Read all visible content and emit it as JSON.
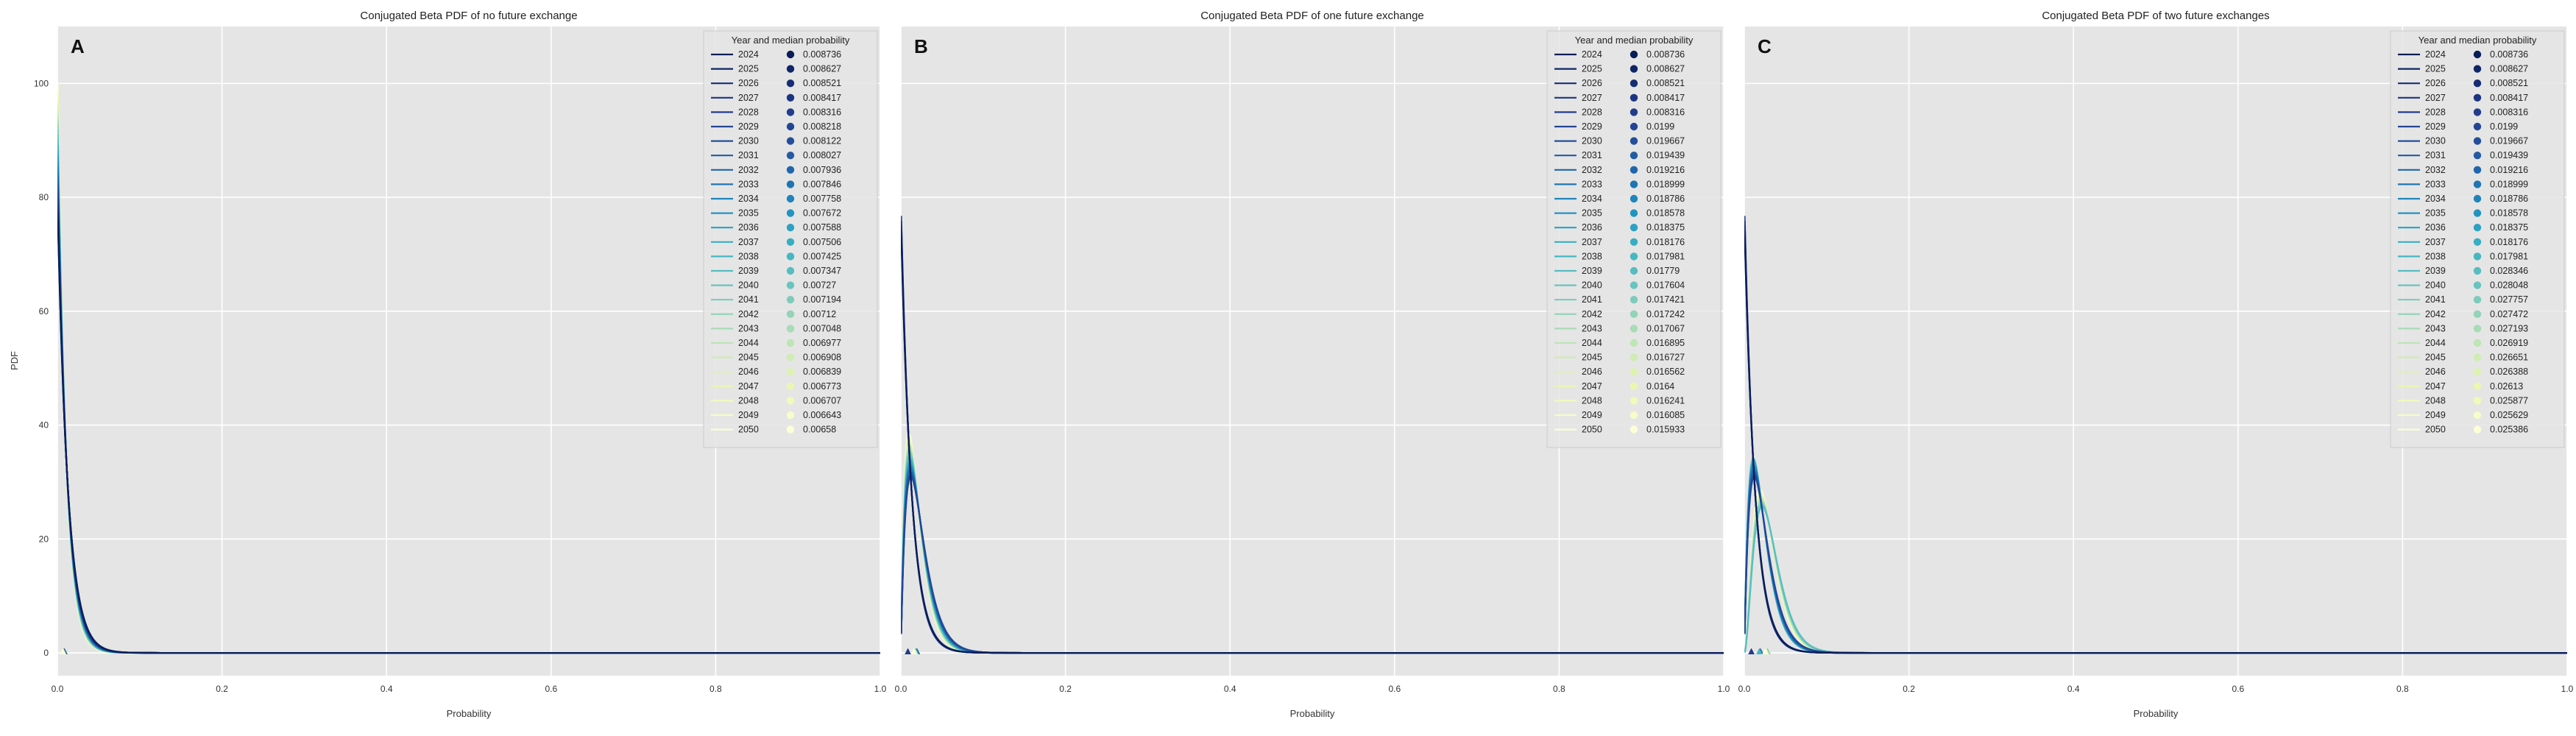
{
  "figure": {
    "ylabel": "PDF"
  },
  "palette": [
    "#081d58",
    "#0f2567",
    "#162d75",
    "#1d3483",
    "#223c8c",
    "#234593",
    "#244e9a",
    "#245aa2",
    "#2066ac",
    "#1e75b3",
    "#1f84ba",
    "#2294c0",
    "#2ca1c2",
    "#37aec3",
    "#46b6c2",
    "#56bdc1",
    "#69c4bf",
    "#7dcbbb",
    "#93d3b8",
    "#a8dbb6",
    "#bde5b5",
    "#cfecb3",
    "#ddf2b2",
    "#e9f7b1",
    "#f1fab9",
    "#f7fcc9",
    "#fcfed8"
  ],
  "chart_data": [
    {
      "type": "line",
      "panel": "A",
      "title": "Conjugated Beta PDF of no future exchange",
      "xlabel": "Probability",
      "ylabel": "PDF",
      "xlim": [
        0,
        1
      ],
      "ylim": [
        -4,
        110
      ],
      "xticks": [
        "0.0",
        "0.2",
        "0.4",
        "0.6",
        "0.8",
        "1.0"
      ],
      "yticks": [
        "0",
        "20",
        "40",
        "60",
        "80",
        "100"
      ],
      "grid": true,
      "legend_title": "Year and median probability",
      "legend_position": "top-right",
      "peak_pdf": 108,
      "series": [
        {
          "name": "2024",
          "median": "0.008736"
        },
        {
          "name": "2025",
          "median": "0.008627"
        },
        {
          "name": "2026",
          "median": "0.008521"
        },
        {
          "name": "2027",
          "median": "0.008417"
        },
        {
          "name": "2028",
          "median": "0.008316"
        },
        {
          "name": "2029",
          "median": "0.008218"
        },
        {
          "name": "2030",
          "median": "0.008122"
        },
        {
          "name": "2031",
          "median": "0.008027"
        },
        {
          "name": "2032",
          "median": "0.007936"
        },
        {
          "name": "2033",
          "median": "0.007846"
        },
        {
          "name": "2034",
          "median": "0.007758"
        },
        {
          "name": "2035",
          "median": "0.007672"
        },
        {
          "name": "2036",
          "median": "0.007588"
        },
        {
          "name": "2037",
          "median": "0.007506"
        },
        {
          "name": "2038",
          "median": "0.007425"
        },
        {
          "name": "2039",
          "median": "0.007347"
        },
        {
          "name": "2040",
          "median": "0.00727"
        },
        {
          "name": "2041",
          "median": "0.007194"
        },
        {
          "name": "2042",
          "median": "0.00712"
        },
        {
          "name": "2043",
          "median": "0.007048"
        },
        {
          "name": "2044",
          "median": "0.006977"
        },
        {
          "name": "2045",
          "median": "0.006908"
        },
        {
          "name": "2046",
          "median": "0.006839"
        },
        {
          "name": "2047",
          "median": "0.006773"
        },
        {
          "name": "2048",
          "median": "0.006707"
        },
        {
          "name": "2049",
          "median": "0.006643"
        },
        {
          "name": "2050",
          "median": "0.00658"
        }
      ]
    },
    {
      "type": "line",
      "panel": "B",
      "title": "Conjugated Beta PDF of one future exchange",
      "xlabel": "Probability",
      "ylabel": "",
      "xlim": [
        0,
        1
      ],
      "ylim": [
        -4,
        110
      ],
      "xticks": [
        "0.0",
        "0.2",
        "0.4",
        "0.6",
        "0.8",
        "1.0"
      ],
      "yticks": [],
      "grid": true,
      "legend_title": "Year and median probability",
      "legend_position": "top-right",
      "series": [
        {
          "name": "2024",
          "median": "0.008736"
        },
        {
          "name": "2025",
          "median": "0.008627"
        },
        {
          "name": "2026",
          "median": "0.008521"
        },
        {
          "name": "2027",
          "median": "0.008417"
        },
        {
          "name": "2028",
          "median": "0.008316"
        },
        {
          "name": "2029",
          "median": "0.0199"
        },
        {
          "name": "2030",
          "median": "0.019667"
        },
        {
          "name": "2031",
          "median": "0.019439"
        },
        {
          "name": "2032",
          "median": "0.019216"
        },
        {
          "name": "2033",
          "median": "0.018999"
        },
        {
          "name": "2034",
          "median": "0.018786"
        },
        {
          "name": "2035",
          "median": "0.018578"
        },
        {
          "name": "2036",
          "median": "0.018375"
        },
        {
          "name": "2037",
          "median": "0.018176"
        },
        {
          "name": "2038",
          "median": "0.017981"
        },
        {
          "name": "2039",
          "median": "0.01779"
        },
        {
          "name": "2040",
          "median": "0.017604"
        },
        {
          "name": "2041",
          "median": "0.017421"
        },
        {
          "name": "2042",
          "median": "0.017242"
        },
        {
          "name": "2043",
          "median": "0.017067"
        },
        {
          "name": "2044",
          "median": "0.016895"
        },
        {
          "name": "2045",
          "median": "0.016727"
        },
        {
          "name": "2046",
          "median": "0.016562"
        },
        {
          "name": "2047",
          "median": "0.0164"
        },
        {
          "name": "2048",
          "median": "0.016241"
        },
        {
          "name": "2049",
          "median": "0.016085"
        },
        {
          "name": "2050",
          "median": "0.015933"
        }
      ]
    },
    {
      "type": "line",
      "panel": "C",
      "title": "Conjugated Beta PDF of two future exchanges",
      "xlabel": "Probability",
      "ylabel": "",
      "xlim": [
        0,
        1
      ],
      "ylim": [
        -4,
        110
      ],
      "xticks": [
        "0.0",
        "0.2",
        "0.4",
        "0.6",
        "0.8",
        "1.0"
      ],
      "yticks": [],
      "grid": true,
      "legend_title": "Year and median probability",
      "legend_position": "top-right",
      "series": [
        {
          "name": "2024",
          "median": "0.008736"
        },
        {
          "name": "2025",
          "median": "0.008627"
        },
        {
          "name": "2026",
          "median": "0.008521"
        },
        {
          "name": "2027",
          "median": "0.008417"
        },
        {
          "name": "2028",
          "median": "0.008316"
        },
        {
          "name": "2029",
          "median": "0.0199"
        },
        {
          "name": "2030",
          "median": "0.019667"
        },
        {
          "name": "2031",
          "median": "0.019439"
        },
        {
          "name": "2032",
          "median": "0.019216"
        },
        {
          "name": "2033",
          "median": "0.018999"
        },
        {
          "name": "2034",
          "median": "0.018786"
        },
        {
          "name": "2035",
          "median": "0.018578"
        },
        {
          "name": "2036",
          "median": "0.018375"
        },
        {
          "name": "2037",
          "median": "0.018176"
        },
        {
          "name": "2038",
          "median": "0.017981"
        },
        {
          "name": "2039",
          "median": "0.028346"
        },
        {
          "name": "2040",
          "median": "0.028048"
        },
        {
          "name": "2041",
          "median": "0.027757"
        },
        {
          "name": "2042",
          "median": "0.027472"
        },
        {
          "name": "2043",
          "median": "0.027193"
        },
        {
          "name": "2044",
          "median": "0.026919"
        },
        {
          "name": "2045",
          "median": "0.026651"
        },
        {
          "name": "2046",
          "median": "0.026388"
        },
        {
          "name": "2047",
          "median": "0.02613"
        },
        {
          "name": "2048",
          "median": "0.025877"
        },
        {
          "name": "2049",
          "median": "0.025629"
        },
        {
          "name": "2050",
          "median": "0.025386"
        }
      ]
    }
  ]
}
